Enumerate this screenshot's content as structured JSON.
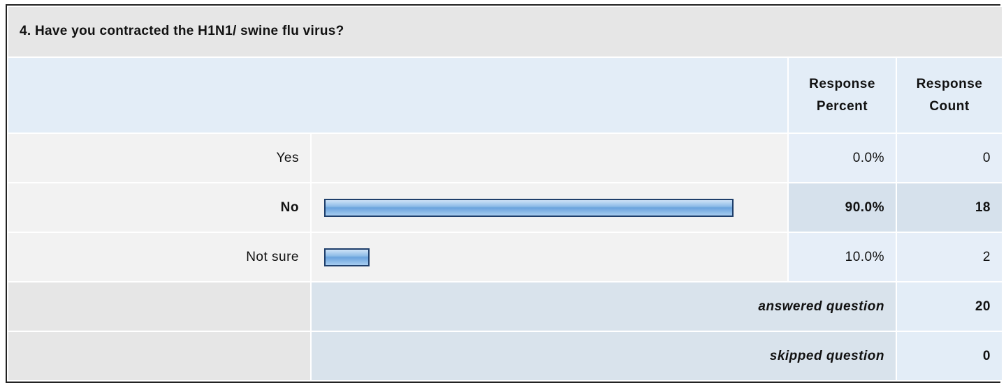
{
  "title": "4. Have you contracted the H1N1/ swine flu virus?",
  "columns": [
    "Response Percent",
    "Response Count"
  ],
  "rows": [
    {
      "label": "Yes",
      "percent": 0,
      "percent_label": "0.0%",
      "count": 0
    },
    {
      "label": "No",
      "percent": 90,
      "percent_label": "90.0%",
      "count": 18
    },
    {
      "label": "Not sure",
      "percent": 10,
      "percent_label": "10.0%",
      "count": 2
    }
  ],
  "answered": {
    "label": "answered question",
    "count": 20
  },
  "skipped": {
    "label": "skipped question",
    "count": 0
  }
}
